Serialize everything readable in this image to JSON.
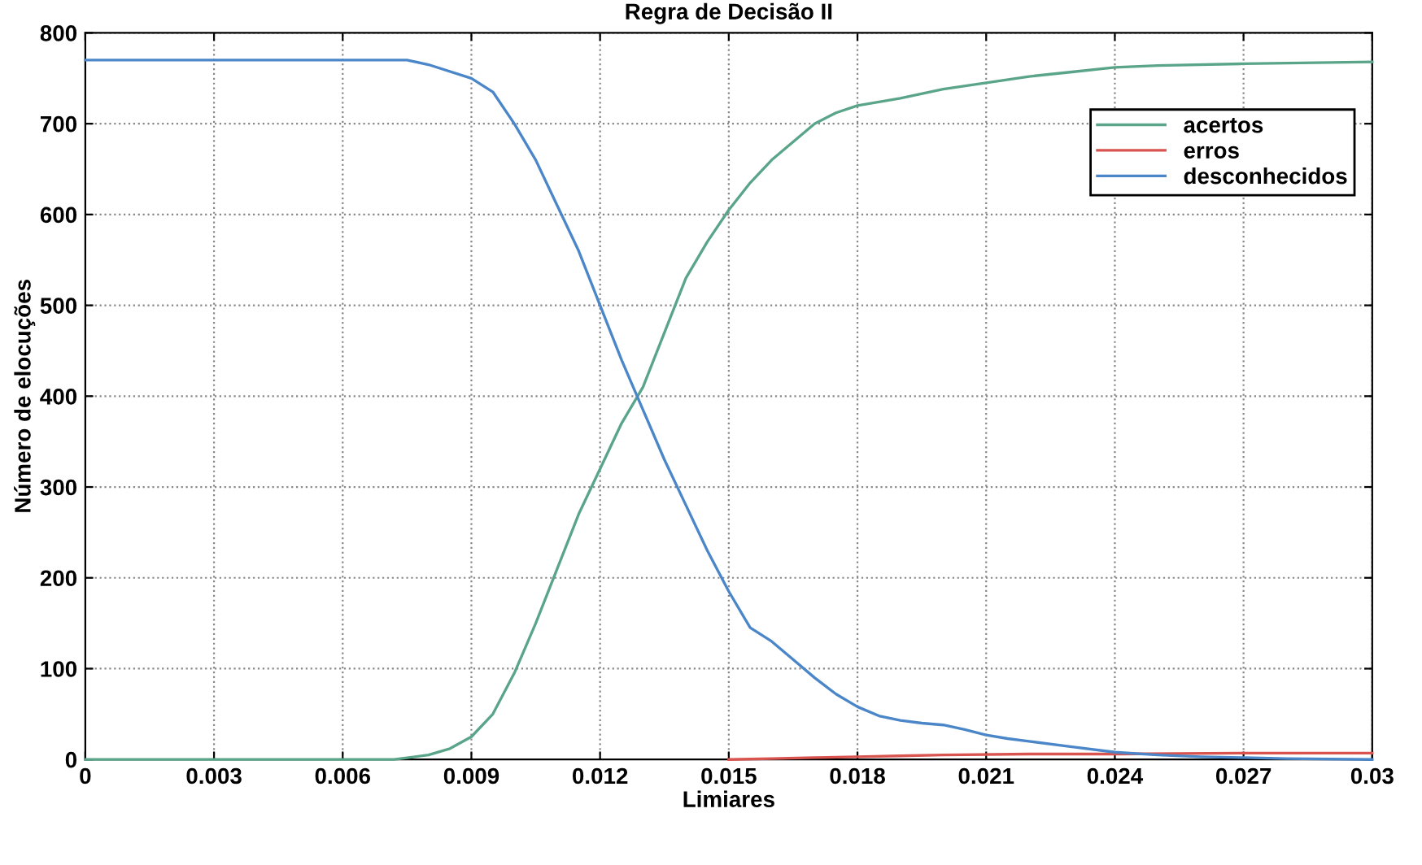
{
  "chart_data": {
    "type": "line",
    "title": "Regra de Decisão II",
    "xlabel": "Limiares",
    "ylabel": "Número de elocuções",
    "xlim": [
      0,
      0.03
    ],
    "xticks": [
      {
        "value": 0,
        "label": "0"
      },
      0.003,
      0.006,
      0.009,
      0.012,
      0.015,
      0.018,
      0.021,
      0.024,
      0.027,
      0.03
    ],
    "ylim": [
      0,
      800
    ],
    "yticks": [
      0,
      100,
      200,
      300,
      400,
      500,
      600,
      700,
      800
    ],
    "grid": true,
    "legend": "top right",
    "line_style": "solid",
    "marker": "none",
    "series": [
      {
        "name": "acertos",
        "color": "#5aa58a",
        "x": [
          0,
          0.0072,
          0.008,
          0.0085,
          0.009,
          0.0095,
          0.01,
          0.0105,
          0.011,
          0.0115,
          0.012,
          0.0125,
          0.013,
          0.0135,
          0.014,
          0.0145,
          0.015,
          0.0155,
          0.016,
          0.0165,
          0.017,
          0.0175,
          0.018,
          0.019,
          0.02,
          0.021,
          0.022,
          0.023,
          0.024,
          0.025,
          0.027,
          0.03
        ],
        "values": [
          0,
          0,
          5,
          12,
          25,
          50,
          95,
          150,
          210,
          270,
          320,
          370,
          410,
          470,
          530,
          570,
          605,
          635,
          660,
          680,
          700,
          712,
          720,
          728,
          738,
          745,
          752,
          757,
          762,
          764,
          766,
          768
        ]
      },
      {
        "name": "erros",
        "color": "#d9534f",
        "x": [
          0.015,
          0.016,
          0.017,
          0.018,
          0.019,
          0.02,
          0.022,
          0.024,
          0.027,
          0.03
        ],
        "values": [
          0,
          1,
          2,
          3,
          4,
          5,
          6,
          6,
          7,
          7
        ]
      },
      {
        "name": "desconhecidos",
        "color": "#4a86c8",
        "x": [
          0,
          0.0075,
          0.008,
          0.009,
          0.0095,
          0.01,
          0.0105,
          0.011,
          0.0115,
          0.012,
          0.0125,
          0.013,
          0.0135,
          0.014,
          0.0145,
          0.015,
          0.0155,
          0.016,
          0.0165,
          0.017,
          0.0175,
          0.018,
          0.0185,
          0.019,
          0.0195,
          0.02,
          0.0205,
          0.021,
          0.0215,
          0.022,
          0.023,
          0.024,
          0.025,
          0.026,
          0.027,
          0.028,
          0.03
        ],
        "values": [
          770,
          770,
          765,
          750,
          735,
          700,
          660,
          610,
          560,
          500,
          440,
          385,
          330,
          280,
          230,
          185,
          145,
          130,
          110,
          90,
          72,
          58,
          48,
          43,
          40,
          38,
          33,
          27,
          23,
          20,
          14,
          8,
          5,
          3,
          2,
          1,
          0
        ]
      }
    ]
  }
}
